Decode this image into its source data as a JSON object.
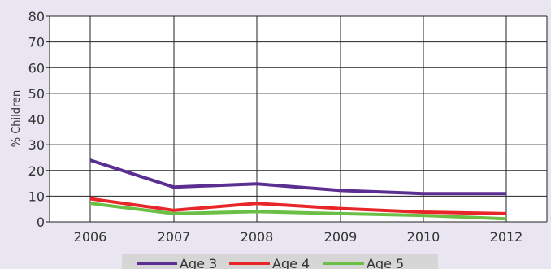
{
  "chart_data": {
    "type": "line",
    "x": [
      "2006",
      "2007",
      "2008",
      "2009",
      "2010",
      "2012"
    ],
    "ylabel": "% Children",
    "xlabel": "",
    "ylim": [
      0,
      80
    ],
    "yticks": [
      "0",
      "10",
      "20",
      "30",
      "40",
      "50",
      "60",
      "70",
      "80"
    ],
    "grid": true,
    "legend_position": "bottom",
    "series": [
      {
        "name": "Age 3",
        "color": "#5b2f91",
        "values": [
          24,
          13.5,
          14.8,
          12.2,
          11,
          11
        ]
      },
      {
        "name": "Age 4",
        "color": "#e8262a",
        "values": [
          9,
          4.5,
          7.2,
          5.2,
          3.8,
          3.2
        ]
      },
      {
        "name": "Age 5",
        "color": "#6cbf45",
        "values": [
          7.2,
          3.2,
          4,
          3.2,
          2.5,
          1.2
        ]
      }
    ]
  }
}
